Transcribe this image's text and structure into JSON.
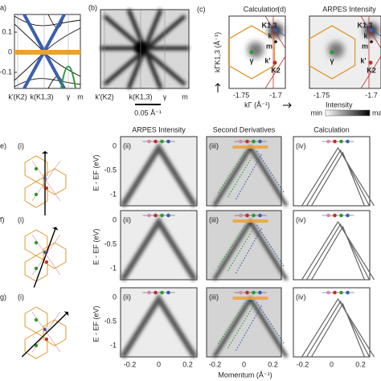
{
  "a": {
    "label": "a)",
    "yticks": [
      "0.1",
      "0",
      "-0.1"
    ],
    "xlabels": [
      "k'(K2)",
      "k(K1,3)",
      "γ",
      "m"
    ]
  },
  "b": {
    "label": "(b)",
    "xlabels": [
      "k'(K2)",
      "k(K1,3)",
      "γ",
      "m"
    ],
    "scale_bar": "0.05 Å⁻¹"
  },
  "c": {
    "label": "(c)",
    "title": "Calculation",
    "ylabel": "kΓK1,3 (Å⁻¹)",
    "xlabel": "kΓ (Å⁻¹)",
    "xticks": [
      "-1.75",
      "-1.7"
    ],
    "points": [
      "K1,3",
      "k",
      "m",
      "γ",
      "k'",
      "K2"
    ]
  },
  "d": {
    "label": "(d)",
    "title": "ARPES Intensity",
    "xticks": [
      "-1.75",
      "-1.7"
    ],
    "points": [
      "K1,3",
      "k",
      "m",
      "γ",
      "k'",
      "K2"
    ],
    "colorbar": {
      "title": "Intensity",
      "min": "min",
      "max": "max"
    }
  },
  "columns": [
    "ARPES Intensity",
    "Second Derivatives",
    "Calculation"
  ],
  "rows": [
    {
      "label": "e)",
      "panels": [
        "(i)",
        "(ii)",
        "(iii)",
        "(iv)"
      ]
    },
    {
      "label": "f)",
      "panels": [
        "(i)",
        "(ii)",
        "(iii)",
        "(iv)"
      ]
    },
    {
      "label": "g)",
      "panels": [
        "(i)",
        "(ii)",
        "(iii)",
        "(iv)"
      ]
    }
  ],
  "ylabel": "E - EF (eV)",
  "yticks": [
    "0",
    "-0.5",
    "-1"
  ],
  "xticks": [
    "-0.2",
    "0",
    "0.2"
  ],
  "xlabel": "Momentum (Å⁻¹)"
}
